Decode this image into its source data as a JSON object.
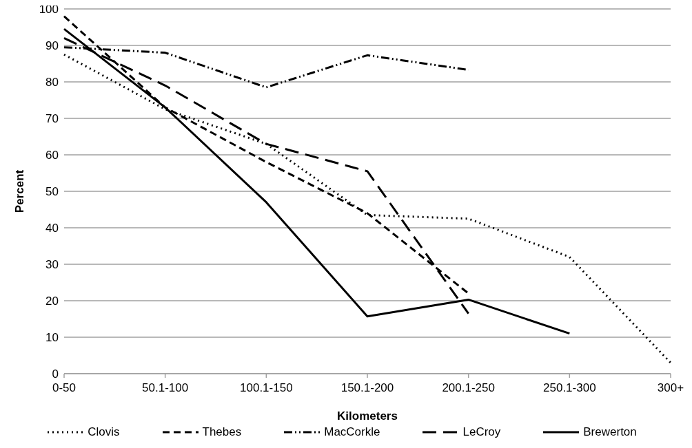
{
  "chart_data": {
    "type": "line",
    "xlabel": "Kilometers",
    "ylabel": "Percent",
    "categories": [
      "0-50",
      "50.1-100",
      "100.1-150",
      "150.1-200",
      "200.1-250",
      "250.1-300",
      "300+"
    ],
    "series": [
      {
        "name": "Clovis",
        "color": "#000000",
        "line_style": "dotted",
        "values": [
          87.5,
          72.5,
          63,
          43.5,
          42.5,
          32,
          3
        ]
      },
      {
        "name": "Thebes",
        "color": "#000000",
        "line_style": "dashed",
        "values": [
          98,
          73,
          58,
          44,
          22,
          null,
          null
        ]
      },
      {
        "name": "MacCorkle",
        "color": "#000000",
        "line_style": "dash-dot-dot",
        "values": [
          89.5,
          88,
          78.5,
          87.3,
          83.3,
          null,
          null
        ]
      },
      {
        "name": "LeCroy",
        "color": "#000000",
        "line_style": "long-dash",
        "values": [
          92,
          79,
          63,
          55.5,
          16.5,
          null,
          null
        ]
      },
      {
        "name": "Brewerton",
        "color": "#000000",
        "line_style": "solid",
        "values": [
          94.5,
          73,
          47,
          15.7,
          20.3,
          11,
          null
        ]
      }
    ],
    "ylim": [
      0,
      100
    ],
    "yticks": [
      0,
      10,
      20,
      30,
      40,
      50,
      60,
      70,
      80,
      90,
      100
    ],
    "grid": "y",
    "legend": "bottom",
    "marker": "none"
  }
}
